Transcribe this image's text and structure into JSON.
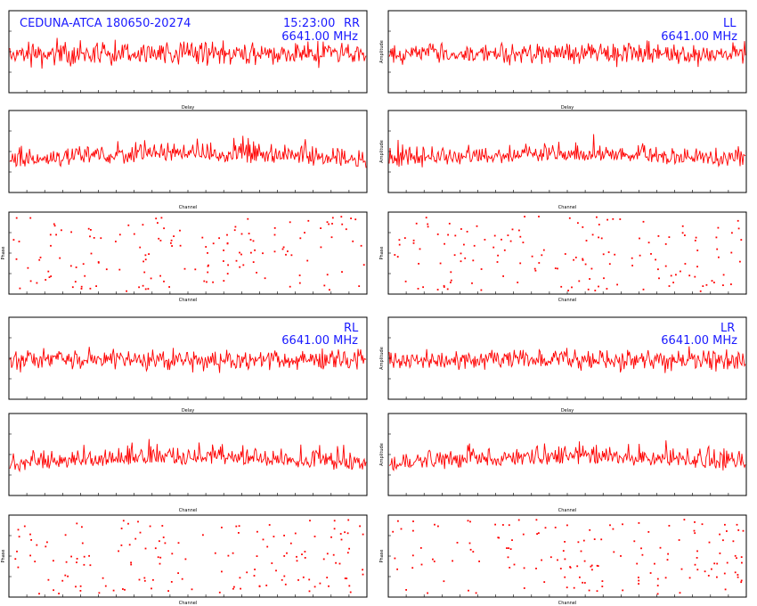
{
  "title": "CEDUNA-ATCA 180650-20274",
  "time_label": "15:23:00",
  "frequency_label": "6641.00 MHz",
  "colors": {
    "trace": "#ff0000",
    "annotation": "#1a1aff",
    "frame": "#000000"
  },
  "chart_data": [
    {
      "type": "line",
      "pol": "RR",
      "kind": "delay",
      "xlabel": "Delay",
      "ylabel": "",
      "xlim": [
        -320,
        320
      ],
      "ylim": [
        0,
        3.3
      ],
      "grid": false
    },
    {
      "type": "line",
      "pol": "RR",
      "kind": "spectrum",
      "xlabel": "Channel",
      "ylabel": "",
      "xlim": [
        0,
        512
      ],
      "ylim": [
        0,
        8
      ],
      "grid": false
    },
    {
      "type": "scatter",
      "pol": "RR",
      "kind": "phase",
      "xlabel": "Channel",
      "ylabel": "Phase",
      "xlim": [
        0,
        512
      ],
      "ylim": [
        -180,
        180
      ],
      "grid": false
    },
    {
      "type": "line",
      "pol": "LL",
      "kind": "delay",
      "xlabel": "Delay",
      "ylabel": "Amplitude",
      "xlim": [
        -320,
        320
      ],
      "ylim": [
        0,
        3.3
      ],
      "grid": false
    },
    {
      "type": "line",
      "pol": "LL",
      "kind": "spectrum",
      "xlabel": "Channel",
      "ylabel": "Amplitude",
      "xlim": [
        0,
        512
      ],
      "ylim": [
        0,
        8
      ],
      "grid": false
    },
    {
      "type": "scatter",
      "pol": "LL",
      "kind": "phase",
      "xlabel": "Channel",
      "ylabel": "Phase",
      "xlim": [
        0,
        512
      ],
      "ylim": [
        -180,
        180
      ],
      "grid": false
    },
    {
      "type": "line",
      "pol": "RL",
      "kind": "delay",
      "xlabel": "Delay",
      "ylabel": "",
      "xlim": [
        -320,
        320
      ],
      "ylim": [
        0,
        3.3
      ],
      "grid": false
    },
    {
      "type": "line",
      "pol": "RL",
      "kind": "spectrum",
      "xlabel": "Channel",
      "ylabel": "",
      "xlim": [
        0,
        512
      ],
      "ylim": [
        0,
        8
      ],
      "grid": false
    },
    {
      "type": "scatter",
      "pol": "RL",
      "kind": "phase",
      "xlabel": "Channel",
      "ylabel": "Phase",
      "xlim": [
        0,
        512
      ],
      "ylim": [
        -180,
        180
      ],
      "grid": false
    },
    {
      "type": "line",
      "pol": "LR",
      "kind": "delay",
      "xlabel": "Delay",
      "ylabel": "Amplitude",
      "xlim": [
        -320,
        320
      ],
      "ylim": [
        0,
        3.3
      ],
      "grid": false
    },
    {
      "type": "line",
      "pol": "LR",
      "kind": "spectrum",
      "xlabel": "Channel",
      "ylabel": "Amplitude",
      "xlim": [
        0,
        512
      ],
      "ylim": [
        0,
        8
      ],
      "grid": false
    },
    {
      "type": "scatter",
      "pol": "LR",
      "kind": "phase",
      "xlabel": "Channel",
      "ylabel": "Phase",
      "xlim": [
        0,
        512
      ],
      "ylim": [
        -180,
        180
      ],
      "grid": false
    }
  ]
}
